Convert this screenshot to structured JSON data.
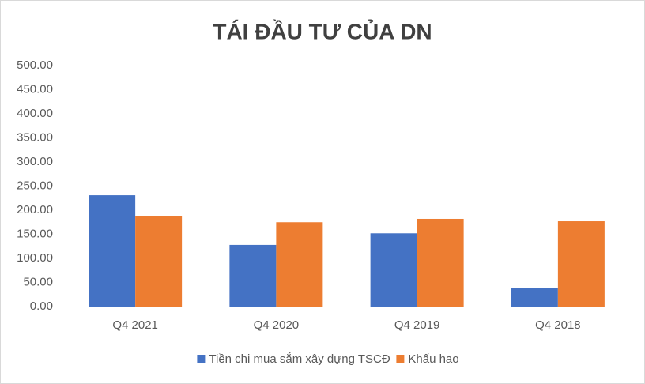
{
  "chart_data": {
    "type": "bar",
    "title": "TÁI ĐẦU TƯ CỦA DN",
    "categories": [
      "Q4 2021",
      "Q4 2020",
      "Q4 2019",
      "Q4 2018"
    ],
    "series": [
      {
        "name": "Tiền chi mua sắm xây dựng TSCĐ",
        "color": "#4472c4",
        "values": [
          231,
          128,
          152,
          38
        ]
      },
      {
        "name": "Khấu hao",
        "color": "#ed7d31",
        "values": [
          188,
          175,
          182,
          177
        ]
      }
    ],
    "ylim": [
      0,
      500
    ],
    "yticks": [
      {
        "value": 0,
        "label": "0.00"
      },
      {
        "value": 50,
        "label": "50.00"
      },
      {
        "value": 100,
        "label": "100.00"
      },
      {
        "value": 150,
        "label": "150.00"
      },
      {
        "value": 200,
        "label": "200.00"
      },
      {
        "value": 250,
        "label": "250.00"
      },
      {
        "value": 300,
        "label": "300.00"
      },
      {
        "value": 350,
        "label": "350.00"
      },
      {
        "value": 400,
        "label": "400.00"
      },
      {
        "value": 450,
        "label": "450.00"
      },
      {
        "value": 500,
        "label": "500.00"
      }
    ],
    "grid": false,
    "legend": "bottom"
  }
}
